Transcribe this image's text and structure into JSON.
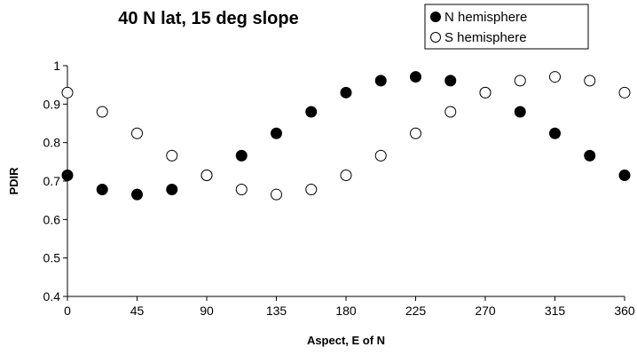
{
  "chart_data": {
    "type": "scatter",
    "title": "40 N lat, 15 deg slope",
    "xlabel": "Aspect, E of N",
    "ylabel": "PDIR",
    "xlim": [
      0,
      360
    ],
    "ylim": [
      0.4,
      1.0
    ],
    "xticks": [
      0,
      45,
      90,
      135,
      180,
      225,
      270,
      315,
      360
    ],
    "yticks": [
      0.4,
      0.5,
      0.6,
      0.7,
      0.8,
      0.9,
      1.0
    ],
    "ytick_labels": [
      "0.4",
      "0.5",
      "0.6",
      "0.7",
      "0.8",
      "0.9",
      "1"
    ],
    "grid": false,
    "legend_position": "top-right",
    "series": [
      {
        "name": "N hemisphere",
        "marker": "filled-circle",
        "color": "#000000",
        "x": [
          0,
          22.5,
          45,
          67.5,
          90,
          112.5,
          135,
          157.5,
          180,
          202.5,
          225,
          247.5,
          270,
          292.5,
          315,
          337.5,
          360
        ],
        "y": [
          0.715,
          0.678,
          0.665,
          0.678,
          0.715,
          0.766,
          0.824,
          0.88,
          0.93,
          0.961,
          0.971,
          0.961,
          0.93,
          0.88,
          0.824,
          0.766,
          0.715
        ]
      },
      {
        "name": "S hemisphere",
        "marker": "open-circle",
        "color": "#000000",
        "x": [
          0,
          22.5,
          45,
          67.5,
          90,
          112.5,
          135,
          157.5,
          180,
          202.5,
          225,
          247.5,
          270,
          292.5,
          315,
          337.5,
          360
        ],
        "y": [
          0.93,
          0.88,
          0.824,
          0.766,
          0.715,
          0.678,
          0.665,
          0.678,
          0.715,
          0.766,
          0.824,
          0.88,
          0.93,
          0.961,
          0.971,
          0.961,
          0.93
        ]
      }
    ]
  }
}
